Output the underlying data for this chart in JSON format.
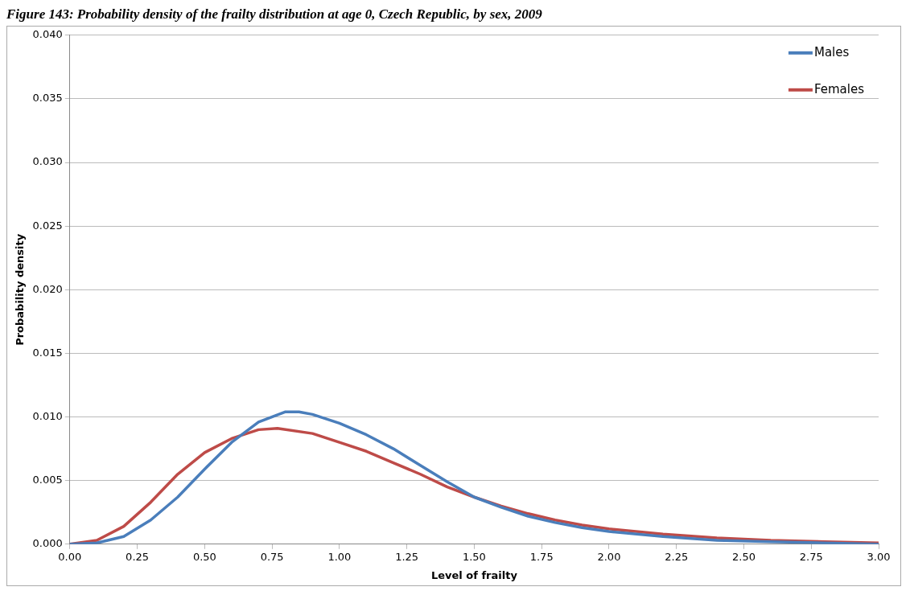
{
  "chart_data": {
    "type": "line",
    "title": "Figure 143: Probability density of the frailty distribution at age 0, Czech Republic, by sex, 2009",
    "xlabel": "Level of frailty",
    "ylabel": "Probability density",
    "xlim": [
      0,
      3
    ],
    "xticks": [
      {
        "value": 0,
        "label": "0.00"
      },
      {
        "value": 0.25,
        "label": "0.25"
      },
      {
        "value": 0.5,
        "label": "0.50"
      },
      {
        "value": 0.75,
        "label": "0.75"
      },
      {
        "value": 1,
        "label": "1.00"
      },
      {
        "value": 1.25,
        "label": "1.25"
      },
      {
        "value": 1.5,
        "label": "1.50"
      },
      {
        "value": 1.75,
        "label": "1.75"
      },
      {
        "value": 2,
        "label": "2.00"
      },
      {
        "value": 2.25,
        "label": "2.25"
      },
      {
        "value": 2.5,
        "label": "2.50"
      },
      {
        "value": 2.75,
        "label": "2.75"
      },
      {
        "value": 3,
        "label": "3.00"
      }
    ],
    "ylim": [
      0,
      0.04
    ],
    "yticks": [
      {
        "value": 0,
        "label": "0.000"
      },
      0.005,
      {
        "value": 0.01,
        "label": "0.010"
      },
      0.015,
      {
        "value": 0.02,
        "label": "0.020"
      },
      0.025,
      {
        "value": 0.03,
        "label": "0.030"
      },
      0.035,
      {
        "value": 0.04,
        "label": "0.040"
      }
    ],
    "grid": "y",
    "legend": "top right",
    "marker": "none",
    "line_style": "solid",
    "series": [
      {
        "name": "Males",
        "color": "#4a7ebb",
        "x": [
          0,
          0.1,
          0.2,
          0.3,
          0.4,
          0.5,
          0.6,
          0.7,
          0.8,
          0.85,
          0.9,
          1.0,
          1.1,
          1.2,
          1.3,
          1.4,
          1.5,
          1.6,
          1.7,
          1.8,
          1.9,
          2.0,
          2.2,
          2.4,
          2.6,
          2.8,
          3.0
        ],
        "values": [
          0,
          0.0001,
          0.0006,
          0.0019,
          0.0037,
          0.0059,
          0.008,
          0.0096,
          0.0104,
          0.0104,
          0.0102,
          0.0095,
          0.0086,
          0.0075,
          0.0062,
          0.0049,
          0.0037,
          0.0029,
          0.0022,
          0.0017,
          0.0013,
          0.001,
          0.0006,
          0.0003,
          0.0002,
          0.0001,
          0
        ]
      },
      {
        "name": "Females",
        "color": "#be4b48",
        "x": [
          0,
          0.1,
          0.2,
          0.3,
          0.4,
          0.5,
          0.6,
          0.7,
          0.77,
          0.9,
          1.0,
          1.1,
          1.2,
          1.3,
          1.4,
          1.5,
          1.6,
          1.7,
          1.8,
          1.9,
          2.0,
          2.2,
          2.4,
          2.6,
          2.8,
          3.0
        ],
        "values": [
          0,
          0.0003,
          0.0014,
          0.0033,
          0.0055,
          0.0072,
          0.0083,
          0.009,
          0.0091,
          0.0087,
          0.008,
          0.0073,
          0.0064,
          0.0055,
          0.0045,
          0.0037,
          0.003,
          0.0024,
          0.0019,
          0.0015,
          0.0012,
          0.0008,
          0.0005,
          0.0003,
          0.0002,
          0.0001
        ]
      }
    ]
  }
}
